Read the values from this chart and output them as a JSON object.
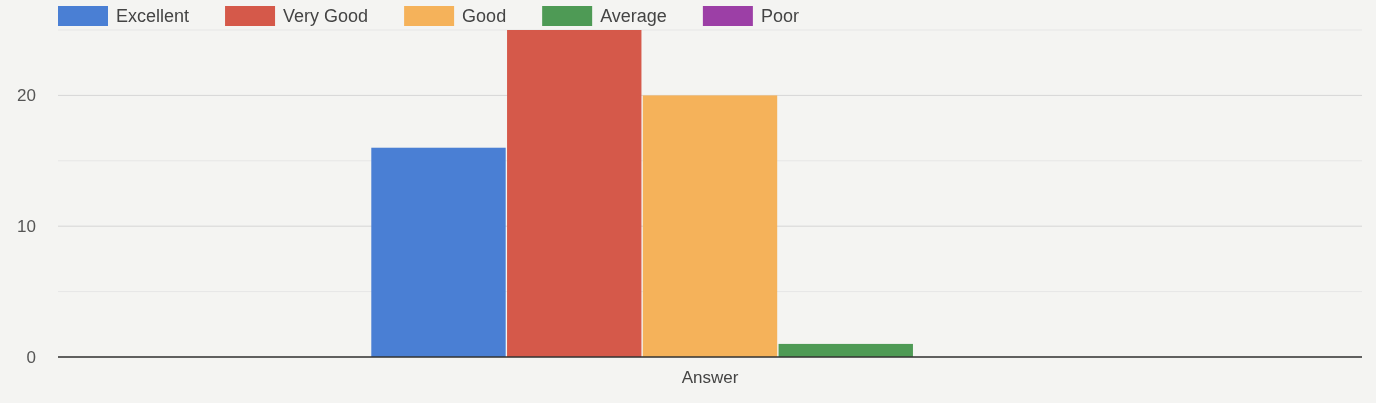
{
  "chart_data": {
    "type": "bar",
    "categories": [
      "Answer"
    ],
    "series": [
      {
        "name": "Excellent",
        "color": "#4a7fd4",
        "values": [
          16
        ]
      },
      {
        "name": "Very Good",
        "color": "#d5594a",
        "values": [
          25
        ]
      },
      {
        "name": "Good",
        "color": "#f5b25a",
        "values": [
          20
        ]
      },
      {
        "name": "Average",
        "color": "#4e9a55",
        "values": [
          1
        ]
      },
      {
        "name": "Poor",
        "color": "#9c3fa6",
        "values": [
          0
        ]
      }
    ],
    "ylim": [
      0,
      25
    ],
    "yticks": [
      0,
      {
        "value": 5,
        "label": null
      },
      10,
      {
        "value": 15,
        "label": null
      },
      20,
      {
        "value": 25,
        "label": null
      }
    ],
    "grid": true,
    "legend": "top left"
  }
}
